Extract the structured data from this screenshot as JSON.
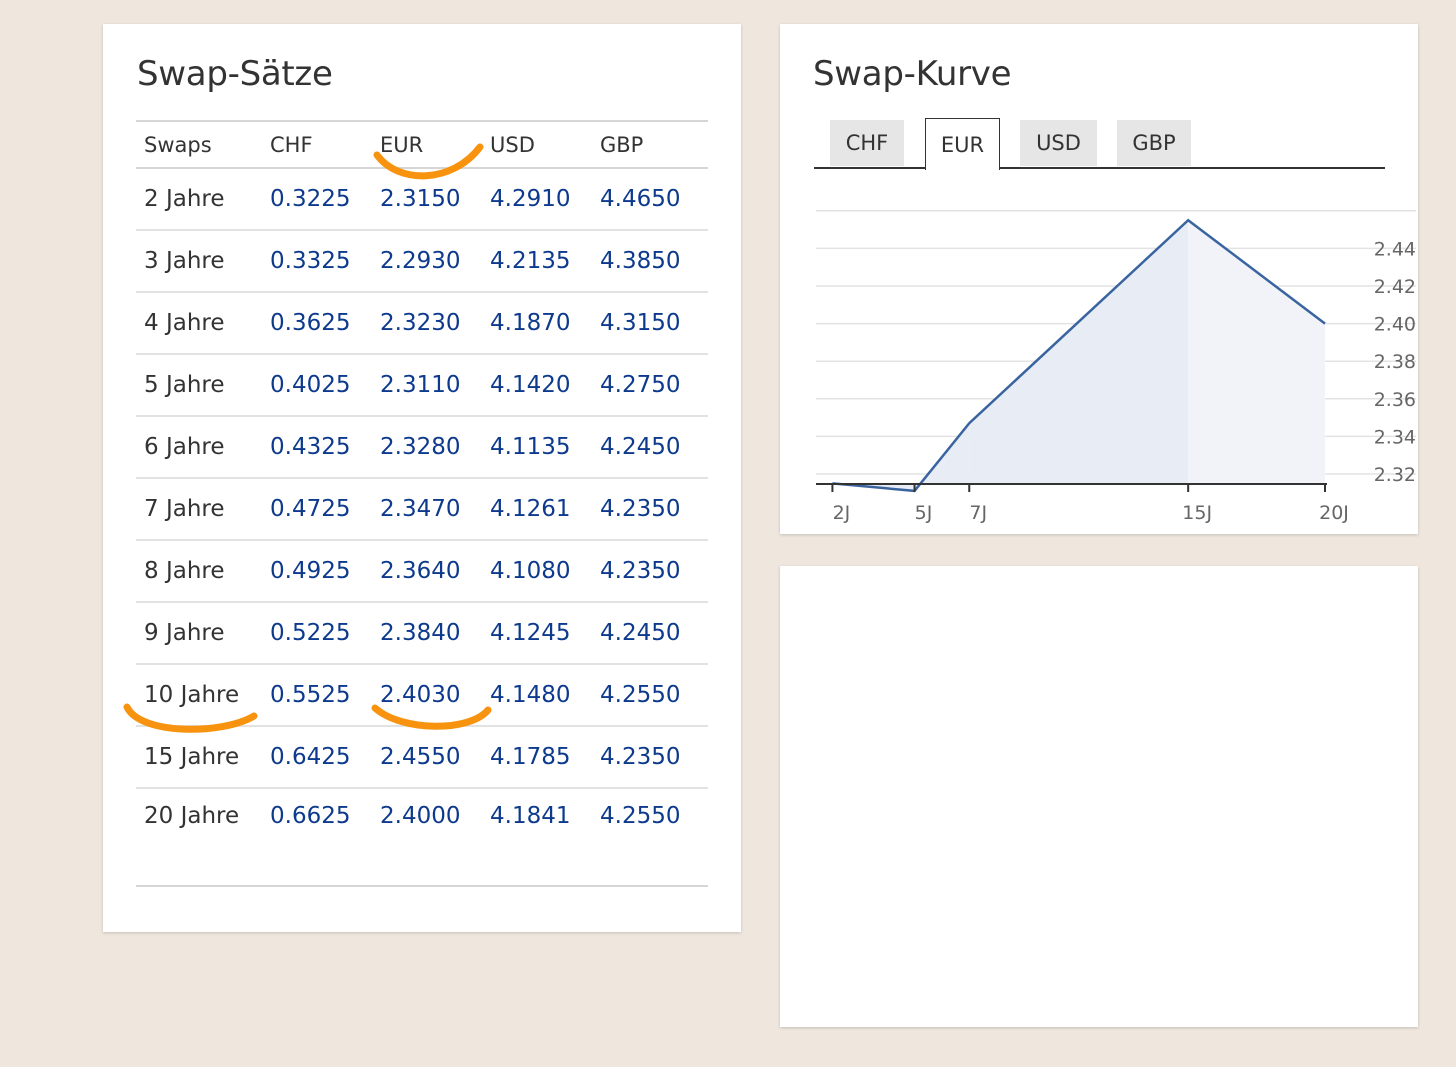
{
  "rates_panel": {
    "title": "Swap-Sätze",
    "headers": [
      "Swaps",
      "CHF",
      "EUR",
      "USD",
      "GBP"
    ],
    "rows": [
      {
        "term": "2 Jahre",
        "chf": "0.3225",
        "eur": "2.3150",
        "usd": "4.2910",
        "gbp": "4.4650"
      },
      {
        "term": "3 Jahre",
        "chf": "0.3325",
        "eur": "2.2930",
        "usd": "4.2135",
        "gbp": "4.3850"
      },
      {
        "term": "4 Jahre",
        "chf": "0.3625",
        "eur": "2.3230",
        "usd": "4.1870",
        "gbp": "4.3150"
      },
      {
        "term": "5 Jahre",
        "chf": "0.4025",
        "eur": "2.3110",
        "usd": "4.1420",
        "gbp": "4.2750"
      },
      {
        "term": "6 Jahre",
        "chf": "0.4325",
        "eur": "2.3280",
        "usd": "4.1135",
        "gbp": "4.2450"
      },
      {
        "term": "7 Jahre",
        "chf": "0.4725",
        "eur": "2.3470",
        "usd": "4.1261",
        "gbp": "4.2350"
      },
      {
        "term": "8 Jahre",
        "chf": "0.4925",
        "eur": "2.3640",
        "usd": "4.1080",
        "gbp": "4.2350"
      },
      {
        "term": "9 Jahre",
        "chf": "0.5225",
        "eur": "2.3840",
        "usd": "4.1245",
        "gbp": "4.2450"
      },
      {
        "term": "10 Jahre",
        "chf": "0.5525",
        "eur": "2.4030",
        "usd": "4.1480",
        "gbp": "4.2550"
      },
      {
        "term": "15 Jahre",
        "chf": "0.6425",
        "eur": "2.4550",
        "usd": "4.1785",
        "gbp": "4.2350"
      },
      {
        "term": "20 Jahre",
        "chf": "0.6625",
        "eur": "2.4000",
        "usd": "4.1841",
        "gbp": "4.2550"
      }
    ]
  },
  "curve_panel": {
    "title": "Swap-Kurve",
    "tabs": [
      {
        "label": "CHF",
        "active": false
      },
      {
        "label": "EUR",
        "active": true
      },
      {
        "label": "USD",
        "active": false
      },
      {
        "label": "GBP",
        "active": false
      }
    ]
  },
  "chart_data": {
    "type": "area",
    "x": [
      "2J",
      "5J",
      "7J",
      "15J",
      "20J"
    ],
    "x_years": [
      2,
      5,
      7,
      15,
      20
    ],
    "values": [
      2.315,
      2.311,
      2.347,
      2.455,
      2.4
    ],
    "y_ticks": [
      "2.32",
      "2.34",
      "2.36",
      "2.38",
      "2.40",
      "2.42",
      "2.44"
    ],
    "ylim": [
      2.31,
      2.455
    ],
    "grid": true,
    "y_axis_side": "right",
    "line_color": "#3a64a0",
    "fill_color": "#e8ecf5",
    "title": "",
    "xlabel": "",
    "ylabel": ""
  },
  "colors": {
    "background": "#efe7de",
    "value_text": "#0d3a8c",
    "annotation": "#f7930f"
  }
}
